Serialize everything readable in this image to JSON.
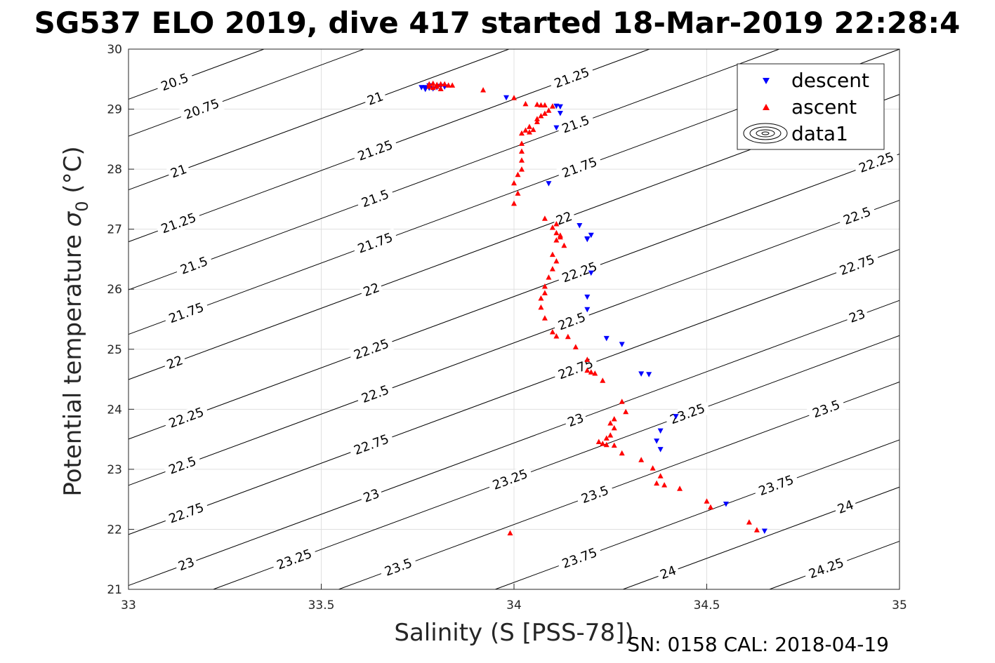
{
  "chart_data": {
    "type": "scatter",
    "title": "SG537 ELO 2019, dive 417 started 18-Mar-2019 22:28:4",
    "xlabel": "Salinity (S [PSS-78])",
    "ylabel_main": "Potential temperature ",
    "ylabel_sym": "σ",
    "ylabel_sub": "0",
    "ylabel_unit": " (°C)",
    "footer": "SN: 0158  CAL: 2018-04-19",
    "xlim": [
      33,
      35
    ],
    "ylim": [
      21,
      30
    ],
    "xticks": [
      "33",
      "33.5",
      "34",
      "34.5",
      "35"
    ],
    "yticks": [
      "21",
      "22",
      "23",
      "24",
      "25",
      "26",
      "27",
      "28",
      "29",
      "30"
    ],
    "grid": true,
    "legend": {
      "position": "top-right",
      "entries": [
        "descent",
        "ascent",
        "data1"
      ]
    },
    "colors": {
      "descent": "#0000ff",
      "ascent": "#ff0000",
      "contour": "#000000",
      "grid": "#e0e0e0"
    },
    "contours": {
      "levels": [
        "20.5",
        "20.75",
        "21",
        "21.25",
        "21.5",
        "21.75",
        "22",
        "22.25",
        "22.5",
        "22.75",
        "23",
        "23.25",
        "23.5",
        "23.75",
        "24",
        "24.25"
      ],
      "label_positions": [
        {
          "level": "20.5",
          "points": [
            [
              33.12,
              29.45
            ]
          ]
        },
        {
          "level": "20.75",
          "points": [
            [
              33.19,
              29.0
            ]
          ]
        },
        {
          "level": "21",
          "points": [
            [
              33.13,
              28.0
            ],
            [
              33.64,
              29.14
            ]
          ]
        },
        {
          "level": "21.25",
          "points": [
            [
              33.13,
              27.15
            ],
            [
              33.64,
              28.25
            ],
            [
              34.15,
              29.53
            ]
          ]
        },
        {
          "level": "21.5",
          "points": [
            [
              33.17,
              26.35
            ],
            [
              33.64,
              27.4
            ],
            [
              34.16,
              28.9
            ]
          ]
        },
        {
          "level": "21.75",
          "points": [
            [
              33.15,
              25.6
            ],
            [
              33.64,
              26.8
            ],
            [
              34.17,
              28.0
            ]
          ]
        },
        {
          "level": "22",
          "points": [
            [
              33.12,
              24.75
            ],
            [
              33.63,
              26.0
            ],
            [
              34.13,
              27.2
            ]
          ]
        },
        {
          "level": "22.25",
          "points": [
            [
              33.15,
              23.95
            ],
            [
              33.63,
              25.25
            ],
            [
              34.17,
              26.35
            ],
            [
              34.94,
              27.7
            ]
          ]
        },
        {
          "level": "22.5",
          "points": [
            [
              33.14,
              23.1
            ],
            [
              33.64,
              24.35
            ],
            [
              34.15,
              25.65
            ],
            [
              34.89,
              26.9
            ]
          ]
        },
        {
          "level": "22.75",
          "points": [
            [
              33.15,
              22.25
            ],
            [
              33.63,
              23.55
            ],
            [
              34.16,
              24.85
            ],
            [
              34.89,
              26.1
            ]
          ]
        },
        {
          "level": "23",
          "points": [
            [
              33.15,
              21.35
            ],
            [
              33.63,
              22.7
            ],
            [
              34.16,
              24.0
            ],
            [
              34.89,
              25.3
            ]
          ]
        },
        {
          "level": "23.25",
          "points": [
            [
              33.43,
              21.5
            ],
            [
              33.99,
              22.8
            ],
            [
              34.45,
              23.95
            ]
          ]
        },
        {
          "level": "23.5",
          "points": [
            [
              33.7,
              21.3
            ],
            [
              34.21,
              22.7
            ],
            [
              34.81,
              23.95
            ]
          ]
        },
        {
          "level": "23.75",
          "points": [
            [
              34.17,
              21.45
            ],
            [
              34.68,
              22.8
            ]
          ]
        },
        {
          "level": "24",
          "points": [
            [
              34.4,
              21.15
            ],
            [
              34.86,
              22.5
            ]
          ]
        },
        {
          "level": "24.25",
          "points": [
            [
              34.81,
              21.35
            ]
          ]
        }
      ]
    },
    "series": [
      {
        "name": "descent",
        "marker": "triangle-down",
        "points": [
          [
            33.76,
            29.36
          ],
          [
            33.77,
            29.36
          ],
          [
            33.78,
            29.35
          ],
          [
            33.79,
            29.34
          ],
          [
            33.8,
            29.36
          ],
          [
            33.78,
            29.39
          ],
          [
            33.81,
            29.38
          ],
          [
            33.82,
            29.37
          ],
          [
            33.77,
            29.33
          ],
          [
            33.98,
            29.19
          ],
          [
            34.11,
            29.05
          ],
          [
            34.12,
            29.04
          ],
          [
            34.12,
            28.93
          ],
          [
            34.11,
            28.69
          ],
          [
            34.09,
            27.76
          ],
          [
            34.17,
            27.06
          ],
          [
            34.19,
            26.84
          ],
          [
            34.2,
            26.9
          ],
          [
            34.19,
            26.83
          ],
          [
            34.2,
            26.27
          ],
          [
            34.19,
            25.87
          ],
          [
            34.19,
            25.66
          ],
          [
            34.24,
            25.18
          ],
          [
            34.28,
            25.08
          ],
          [
            34.33,
            24.59
          ],
          [
            34.35,
            24.58
          ],
          [
            34.42,
            23.88
          ],
          [
            34.38,
            23.64
          ],
          [
            34.37,
            23.47
          ],
          [
            34.38,
            23.33
          ],
          [
            34.55,
            22.42
          ],
          [
            34.65,
            21.97
          ]
        ]
      },
      {
        "name": "ascent",
        "marker": "triangle-up",
        "points": [
          [
            33.78,
            29.42
          ],
          [
            33.79,
            29.43
          ],
          [
            33.8,
            29.41
          ],
          [
            33.81,
            29.42
          ],
          [
            33.8,
            29.38
          ],
          [
            33.82,
            29.42
          ],
          [
            33.84,
            29.4
          ],
          [
            33.81,
            29.34
          ],
          [
            33.83,
            29.4
          ],
          [
            33.79,
            29.36
          ],
          [
            33.78,
            29.38
          ],
          [
            33.92,
            29.32
          ],
          [
            34.0,
            29.19
          ],
          [
            34.03,
            29.09
          ],
          [
            34.06,
            29.08
          ],
          [
            34.07,
            29.07
          ],
          [
            34.08,
            29.07
          ],
          [
            34.1,
            29.05
          ],
          [
            34.09,
            28.98
          ],
          [
            34.08,
            28.93
          ],
          [
            34.07,
            28.89
          ],
          [
            34.06,
            28.79
          ],
          [
            34.06,
            28.84
          ],
          [
            34.04,
            28.71
          ],
          [
            34.03,
            28.65
          ],
          [
            34.02,
            28.6
          ],
          [
            34.04,
            28.62
          ],
          [
            34.05,
            28.66
          ],
          [
            34.02,
            28.43
          ],
          [
            34.02,
            28.3
          ],
          [
            34.02,
            28.15
          ],
          [
            34.02,
            28.0
          ],
          [
            34.01,
            27.91
          ],
          [
            34.0,
            27.77
          ],
          [
            34.01,
            27.6
          ],
          [
            34.0,
            27.43
          ],
          [
            34.08,
            27.18
          ],
          [
            34.11,
            27.09
          ],
          [
            34.1,
            27.03
          ],
          [
            34.11,
            26.94
          ],
          [
            34.12,
            26.87
          ],
          [
            34.11,
            26.82
          ],
          [
            34.12,
            26.9
          ],
          [
            34.13,
            26.73
          ],
          [
            34.1,
            26.58
          ],
          [
            34.11,
            26.47
          ],
          [
            34.1,
            26.34
          ],
          [
            34.09,
            26.2
          ],
          [
            34.08,
            26.05
          ],
          [
            34.08,
            25.94
          ],
          [
            34.07,
            25.85
          ],
          [
            34.07,
            25.7
          ],
          [
            34.08,
            25.52
          ],
          [
            34.1,
            25.29
          ],
          [
            34.11,
            25.22
          ],
          [
            34.14,
            25.21
          ],
          [
            34.16,
            25.04
          ],
          [
            34.19,
            24.83
          ],
          [
            34.19,
            24.65
          ],
          [
            34.2,
            24.62
          ],
          [
            34.21,
            24.6
          ],
          [
            34.23,
            24.48
          ],
          [
            34.28,
            24.13
          ],
          [
            34.29,
            23.96
          ],
          [
            34.26,
            23.84
          ],
          [
            34.25,
            23.77
          ],
          [
            34.26,
            23.69
          ],
          [
            34.25,
            23.57
          ],
          [
            34.24,
            23.52
          ],
          [
            34.22,
            23.46
          ],
          [
            34.23,
            23.43
          ],
          [
            34.24,
            23.41
          ],
          [
            34.26,
            23.4
          ],
          [
            34.28,
            23.27
          ],
          [
            34.33,
            23.16
          ],
          [
            34.36,
            23.02
          ],
          [
            34.38,
            22.89
          ],
          [
            34.37,
            22.77
          ],
          [
            34.39,
            22.74
          ],
          [
            34.43,
            22.68
          ],
          [
            34.5,
            22.47
          ],
          [
            34.51,
            22.37
          ],
          [
            34.61,
            22.12
          ],
          [
            34.63,
            21.99
          ],
          [
            33.99,
            21.94
          ]
        ]
      }
    ]
  }
}
